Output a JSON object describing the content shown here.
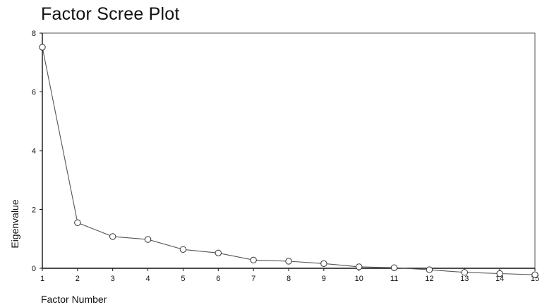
{
  "chart_data": {
    "type": "line",
    "title": "Factor Scree Plot",
    "xlabel": "Factor Number",
    "ylabel": "Eigenvalue",
    "x_ticks": [
      1,
      2,
      3,
      4,
      5,
      6,
      7,
      8,
      9,
      10,
      11,
      12,
      13,
      14,
      15
    ],
    "y_ticks": [
      0,
      2,
      4,
      6,
      8
    ],
    "xlim": [
      1,
      15
    ],
    "ylim": [
      0,
      8
    ],
    "grid": false,
    "legend": "none",
    "marker": "open-circle",
    "line_color": "#555555",
    "x": [
      1,
      2,
      3,
      4,
      5,
      6,
      7,
      8,
      9,
      10,
      11,
      12,
      13,
      14,
      15
    ],
    "values": [
      7.52,
      1.55,
      1.08,
      0.98,
      0.64,
      0.52,
      0.28,
      0.24,
      0.16,
      0.05,
      0.02,
      -0.05,
      -0.14,
      -0.18,
      -0.22
    ]
  }
}
